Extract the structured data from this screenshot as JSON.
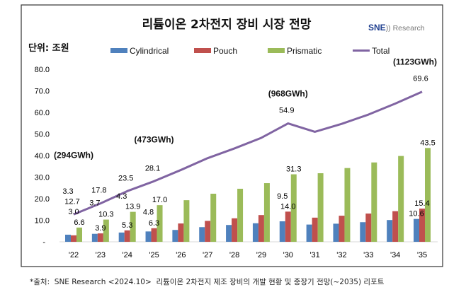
{
  "chart_data": {
    "type": "bar",
    "title": "리튬이온 2차전지 장비 시장 전망",
    "unit_label": "단위: 조원",
    "logo": "SNE Research",
    "categories": [
      "'22",
      "'23",
      "'24",
      "'25",
      "'26",
      "'27",
      "'28",
      "'29",
      "'30",
      "'31",
      "'32",
      "'33",
      "'34",
      "'35"
    ],
    "ylim": [
      0,
      80
    ],
    "yticks": [
      "-",
      "10.0",
      "20.0",
      "30.0",
      "40.0",
      "50.0",
      "60.0",
      "70.0",
      "80.0"
    ],
    "grid": false,
    "legend_position": "top",
    "series": [
      {
        "name": "Cylindrical",
        "type": "bar",
        "color": "#4f81bd",
        "values": [
          3.3,
          3.7,
          4.3,
          4.8,
          5.5,
          6.8,
          7.8,
          8.6,
          9.5,
          8.0,
          8.4,
          9.1,
          10.1,
          10.6
        ],
        "labels": [
          "3.3",
          "3.7",
          "4.3",
          "4.8",
          null,
          null,
          null,
          null,
          "9.5",
          null,
          null,
          null,
          null,
          "10.6"
        ]
      },
      {
        "name": "Pouch",
        "type": "bar",
        "color": "#c0504d",
        "values": [
          3.0,
          3.9,
          5.3,
          6.3,
          8.5,
          9.7,
          10.9,
          12.4,
          14.0,
          11.2,
          12.1,
          13.1,
          14.2,
          15.4
        ],
        "labels": [
          "3.0",
          "3.9",
          "5.3",
          "6.3",
          null,
          null,
          null,
          null,
          "14.0",
          null,
          null,
          null,
          null,
          "15.4"
        ]
      },
      {
        "name": "Prismatic",
        "type": "bar",
        "color": "#9bbb59",
        "values": [
          6.6,
          10.3,
          13.9,
          17.0,
          19.3,
          22.3,
          24.6,
          27.2,
          31.3,
          31.8,
          34.2,
          36.8,
          39.8,
          43.5
        ],
        "labels": [
          "6.6",
          "10.3",
          "13.9",
          "17.0",
          null,
          null,
          null,
          null,
          "31.3",
          null,
          null,
          null,
          null,
          "43.5"
        ]
      },
      {
        "name": "Total",
        "type": "line",
        "color": "#8064a2",
        "values": [
          12.7,
          17.8,
          23.5,
          28.1,
          33.3,
          38.8,
          43.3,
          48.2,
          54.9,
          51.0,
          54.7,
          59.0,
          64.1,
          69.6
        ],
        "labels": [
          "12.7",
          "17.8",
          "23.5",
          "28.1",
          null,
          null,
          null,
          null,
          "54.9",
          null,
          null,
          null,
          null,
          "69.6"
        ]
      }
    ],
    "annotations": [
      {
        "category": "'22",
        "text": "(294GWh)"
      },
      {
        "category": "'25",
        "text": "(473GWh)"
      },
      {
        "category": "'30",
        "text": "(968GWh)"
      },
      {
        "category": "'35",
        "text": "(1123GWh)"
      }
    ]
  },
  "footnote": "*출처:  SNE Research <2024.10>  리튬이온 2차전지 제조 장비의 개발 현황 및 중장기 전망(~2035) 리포트"
}
